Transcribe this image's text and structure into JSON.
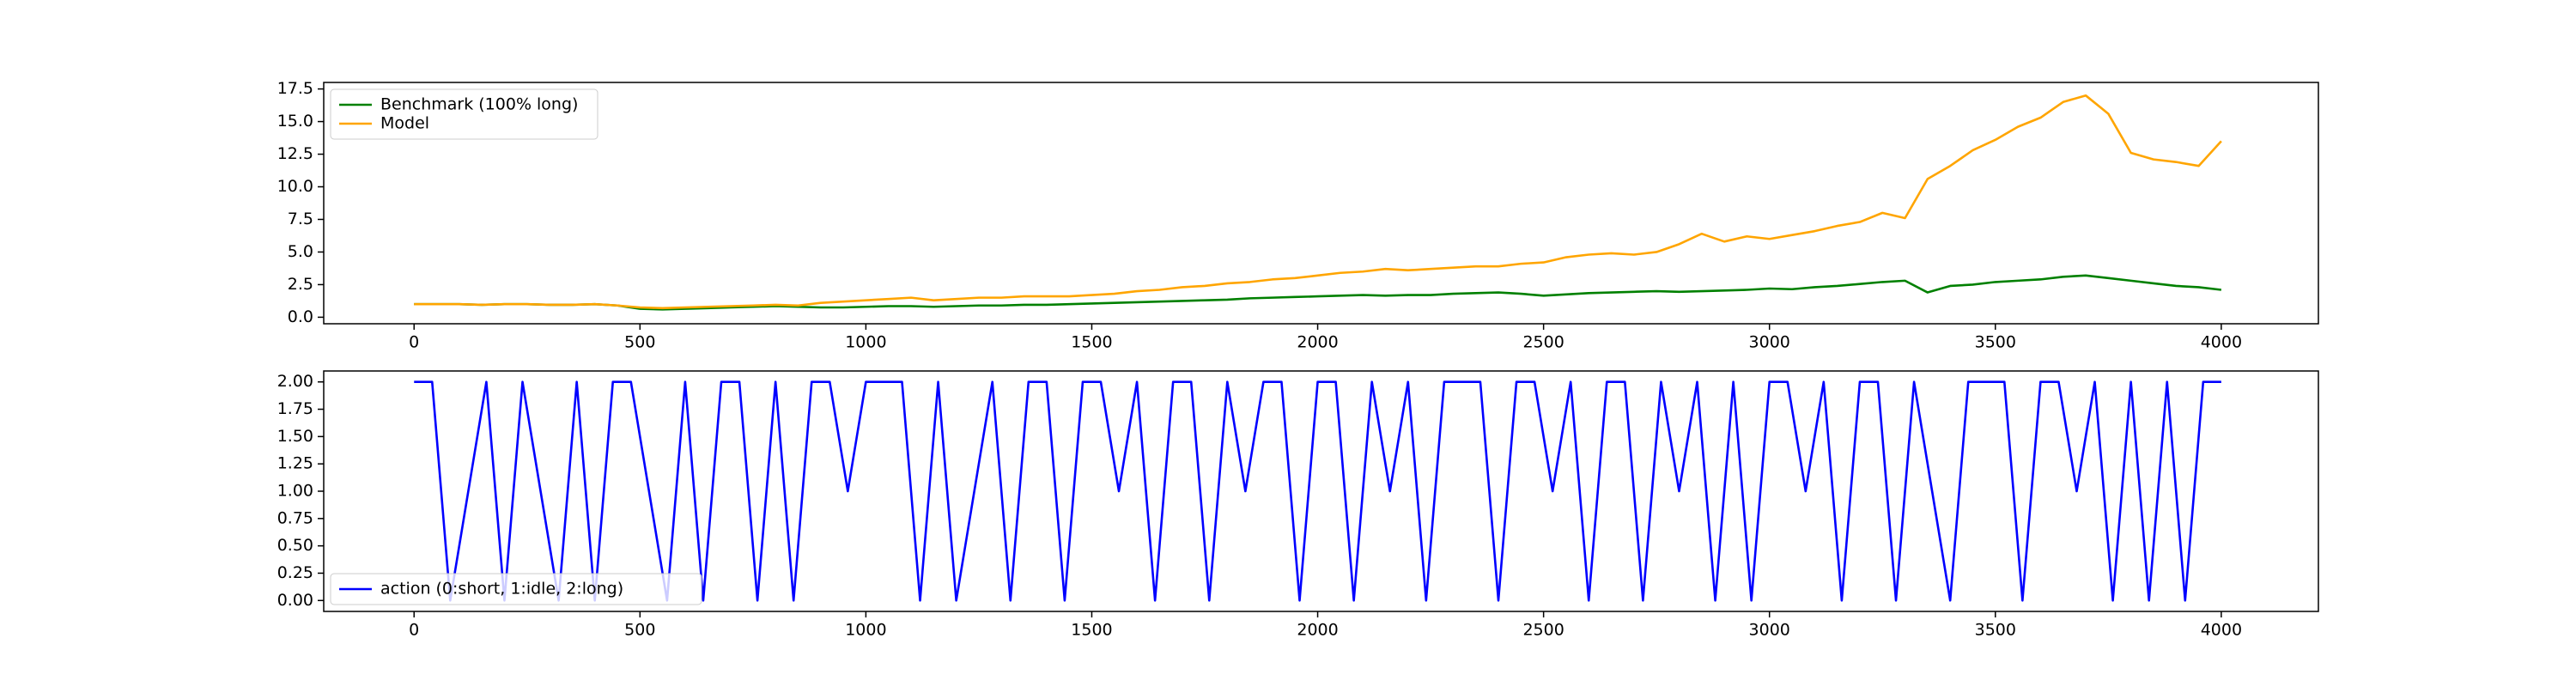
{
  "chart_data": [
    {
      "type": "line",
      "x": [
        0,
        50,
        100,
        150,
        200,
        250,
        300,
        350,
        400,
        450,
        500,
        550,
        600,
        650,
        700,
        750,
        800,
        850,
        900,
        950,
        1000,
        1050,
        1100,
        1150,
        1200,
        1250,
        1300,
        1350,
        1400,
        1450,
        1500,
        1550,
        1600,
        1650,
        1700,
        1750,
        1800,
        1850,
        1900,
        1950,
        2000,
        2050,
        2100,
        2150,
        2200,
        2250,
        2300,
        2350,
        2400,
        2450,
        2500,
        2550,
        2600,
        2650,
        2700,
        2750,
        2800,
        2850,
        2900,
        2950,
        3000,
        3050,
        3100,
        3150,
        3200,
        3250,
        3300,
        3350,
        3400,
        3450,
        3500,
        3550,
        3600,
        3650,
        3700,
        3750,
        3800,
        3850,
        3900,
        3950,
        4000
      ],
      "series": [
        {
          "name": "Benchmark (100% long)",
          "color": "#008000",
          "values": [
            1.0,
            1.0,
            1.0,
            0.95,
            1.0,
            1.0,
            0.95,
            0.95,
            1.0,
            0.9,
            0.65,
            0.6,
            0.65,
            0.7,
            0.75,
            0.8,
            0.85,
            0.8,
            0.75,
            0.75,
            0.8,
            0.85,
            0.85,
            0.8,
            0.85,
            0.9,
            0.9,
            0.95,
            0.95,
            1.0,
            1.05,
            1.1,
            1.15,
            1.2,
            1.25,
            1.3,
            1.35,
            1.45,
            1.5,
            1.55,
            1.6,
            1.65,
            1.7,
            1.65,
            1.7,
            1.7,
            1.8,
            1.85,
            1.9,
            1.8,
            1.65,
            1.75,
            1.85,
            1.9,
            1.95,
            2.0,
            1.95,
            2.0,
            2.05,
            2.1,
            2.2,
            2.15,
            2.3,
            2.4,
            2.55,
            2.7,
            2.8,
            1.9,
            2.4,
            2.5,
            2.7,
            2.8,
            2.9,
            3.1,
            3.2,
            3.0,
            2.8,
            2.6,
            2.4,
            2.3,
            2.1
          ]
        },
        {
          "name": "Model",
          "color": "#ffa500",
          "values": [
            1.0,
            1.0,
            1.0,
            0.95,
            1.0,
            1.0,
            0.95,
            0.95,
            1.0,
            0.9,
            0.75,
            0.7,
            0.75,
            0.8,
            0.85,
            0.9,
            0.95,
            0.9,
            1.1,
            1.2,
            1.3,
            1.4,
            1.5,
            1.3,
            1.4,
            1.5,
            1.5,
            1.6,
            1.6,
            1.6,
            1.7,
            1.8,
            2.0,
            2.1,
            2.3,
            2.4,
            2.6,
            2.7,
            2.9,
            3.0,
            3.2,
            3.4,
            3.5,
            3.7,
            3.6,
            3.7,
            3.8,
            3.9,
            3.9,
            4.1,
            4.2,
            4.6,
            4.8,
            4.9,
            4.8,
            5.0,
            5.6,
            6.4,
            5.8,
            6.2,
            6.0,
            6.3,
            6.6,
            7.0,
            7.3,
            8.0,
            7.6,
            10.6,
            11.6,
            12.8,
            13.6,
            14.6,
            15.3,
            16.5,
            17.0,
            15.6,
            12.6,
            12.1,
            11.9,
            11.6,
            13.5
          ]
        }
      ],
      "xlim": [
        -200,
        4215
      ],
      "ylim": [
        -0.5,
        18.0
      ],
      "xticks": [
        0,
        500,
        1000,
        1500,
        2000,
        2500,
        3000,
        3500,
        4000
      ],
      "yticks": [
        {
          "value": 0,
          "label": "0.0"
        },
        2.5,
        {
          "value": 5,
          "label": "5.0"
        },
        7.5,
        {
          "value": 10,
          "label": "10.0"
        },
        12.5,
        {
          "value": 15,
          "label": "15.0"
        },
        17.5
      ],
      "legend": "upper left"
    },
    {
      "type": "line",
      "x": [
        0,
        40,
        80,
        120,
        160,
        200,
        240,
        280,
        320,
        360,
        400,
        440,
        480,
        520,
        560,
        600,
        640,
        680,
        720,
        760,
        800,
        840,
        880,
        920,
        960,
        1000,
        1040,
        1080,
        1120,
        1160,
        1200,
        1240,
        1280,
        1320,
        1360,
        1400,
        1440,
        1480,
        1520,
        1560,
        1600,
        1640,
        1680,
        1720,
        1760,
        1800,
        1840,
        1880,
        1920,
        1960,
        2000,
        2040,
        2080,
        2120,
        2160,
        2200,
        2240,
        2280,
        2320,
        2360,
        2400,
        2440,
        2480,
        2520,
        2560,
        2600,
        2640,
        2680,
        2720,
        2760,
        2800,
        2840,
        2880,
        2920,
        2960,
        3000,
        3040,
        3080,
        3120,
        3160,
        3200,
        3240,
        3280,
        3320,
        3360,
        3400,
        3440,
        3480,
        3520,
        3560,
        3600,
        3640,
        3680,
        3720,
        3760,
        3800,
        3840,
        3880,
        3920,
        3960,
        4000
      ],
      "series": [
        {
          "name": "action (0:short, 1:idle, 2:long)",
          "color": "#0000ff",
          "values": [
            2,
            2,
            0,
            1,
            2,
            0,
            2,
            1,
            0,
            2,
            0,
            2,
            2,
            1,
            0,
            2,
            0,
            2,
            2,
            0,
            2,
            0,
            2,
            2,
            1,
            2,
            2,
            2,
            0,
            2,
            0,
            1,
            2,
            0,
            2,
            2,
            0,
            2,
            2,
            1,
            2,
            0,
            2,
            2,
            0,
            2,
            1,
            2,
            2,
            0,
            2,
            2,
            0,
            2,
            1,
            2,
            0,
            2,
            2,
            2,
            0,
            2,
            2,
            1,
            2,
            0,
            2,
            2,
            0,
            2,
            1,
            2,
            0,
            2,
            0,
            2,
            2,
            1,
            2,
            0,
            2,
            2,
            0,
            2,
            1,
            0,
            2,
            2,
            2,
            0,
            2,
            2,
            1,
            2,
            0,
            2,
            0,
            2,
            0,
            2,
            2
          ]
        }
      ],
      "xlim": [
        -200,
        4215
      ],
      "ylim": [
        -0.1,
        2.1
      ],
      "xticks": [
        0,
        500,
        1000,
        1500,
        2000,
        2500,
        3000,
        3500,
        4000
      ],
      "yticks": [
        {
          "value": 0,
          "label": "0.00"
        },
        0.25,
        {
          "value": 0.5,
          "label": "0.50"
        },
        0.75,
        {
          "value": 1,
          "label": "1.00"
        },
        1.25,
        {
          "value": 1.5,
          "label": "1.50"
        },
        1.75,
        {
          "value": 2,
          "label": "2.00"
        }
      ],
      "legend": "lower left"
    }
  ]
}
